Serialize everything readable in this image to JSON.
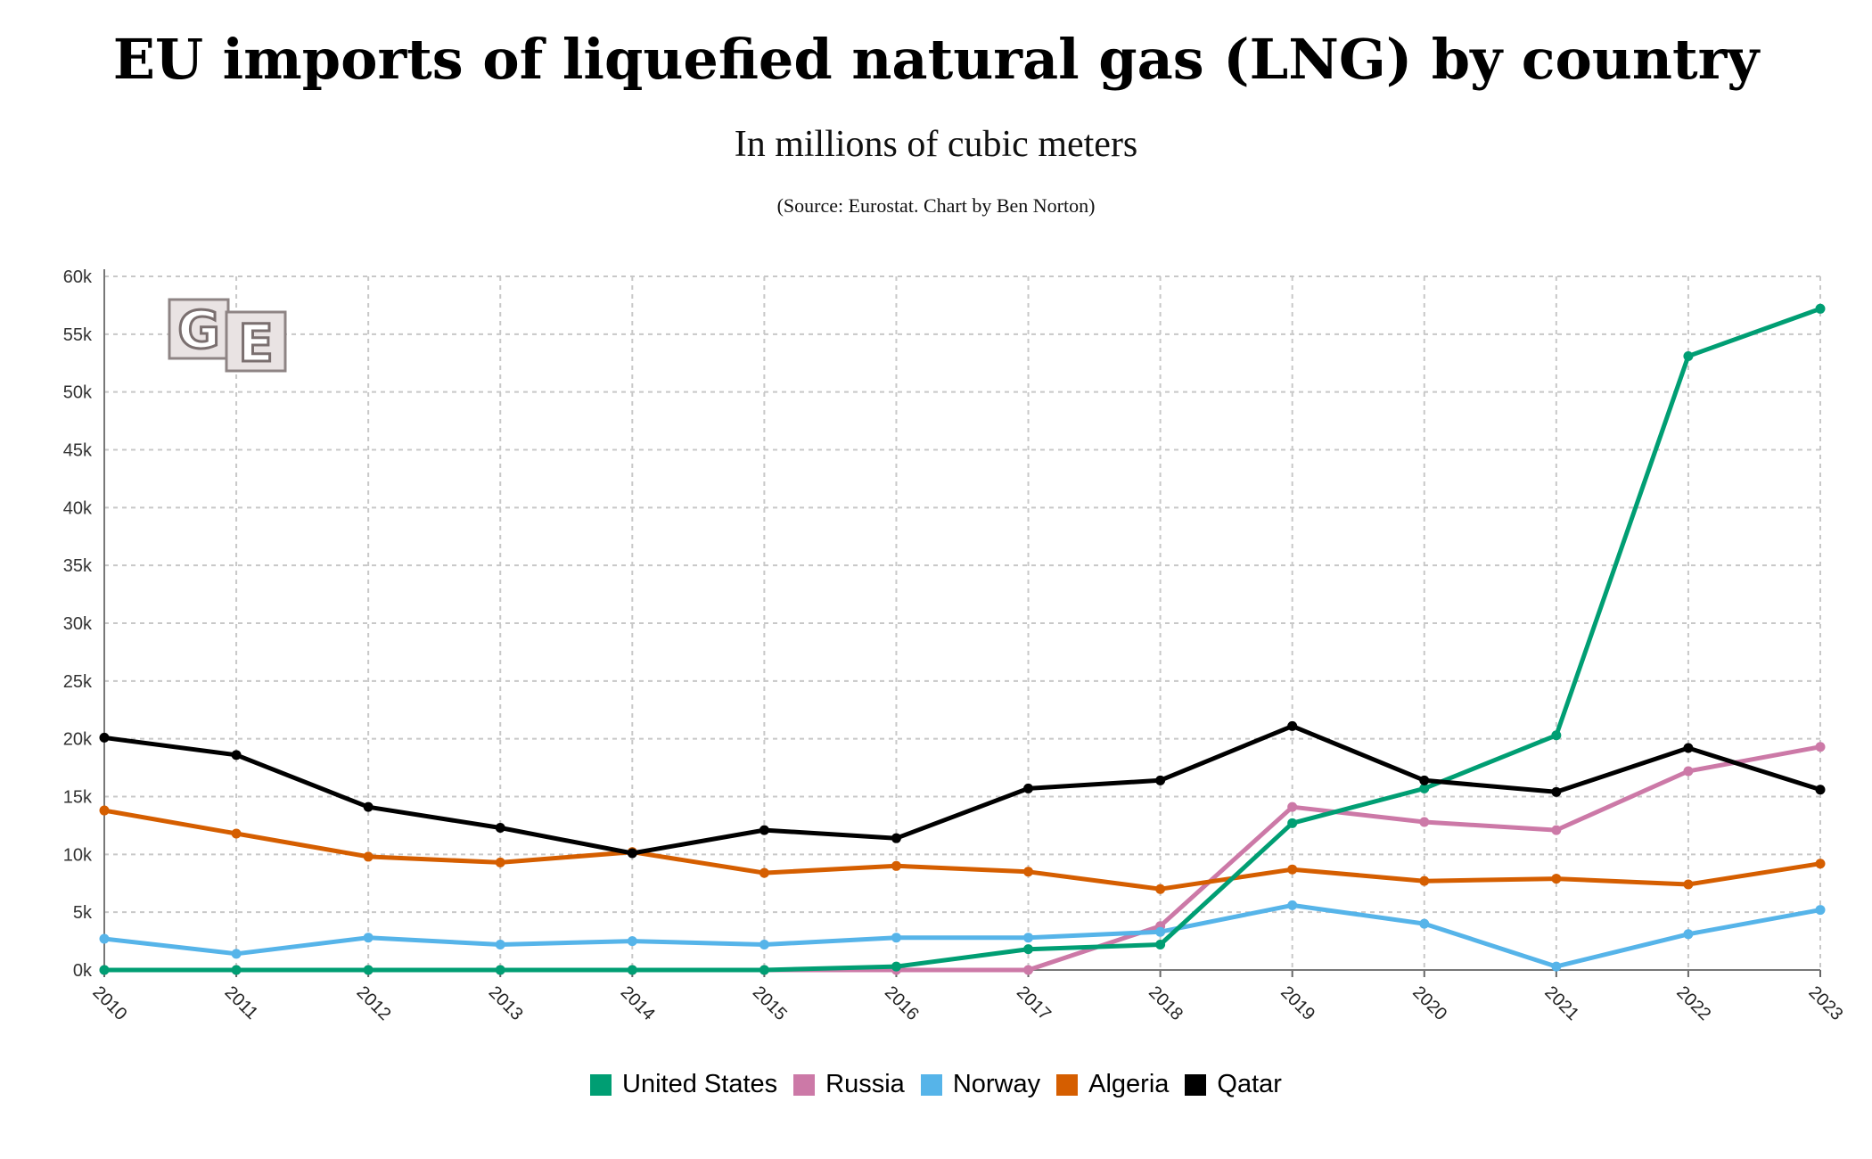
{
  "header": {
    "title": "EU imports of liquefied natural gas (LNG) by country",
    "subtitle": "In millions of cubic meters",
    "source": "(Source: Eurostat. Chart by Ben Norton)"
  },
  "logo": {
    "text_left": "G",
    "text_right": "E"
  },
  "chart_data": {
    "type": "line",
    "title": "EU imports of liquefied natural gas (LNG) by country",
    "subtitle": "In millions of cubic meters",
    "xlabel": "",
    "ylabel": "",
    "grid": true,
    "legend_position": "bottom",
    "ylim": [
      0,
      60000
    ],
    "y_ticks": [
      0,
      5000,
      10000,
      15000,
      20000,
      25000,
      30000,
      35000,
      40000,
      45000,
      50000,
      55000,
      60000
    ],
    "y_tick_labels": [
      "0k",
      "5k",
      "10k",
      "15k",
      "20k",
      "25k",
      "30k",
      "35k",
      "40k",
      "45k",
      "50k",
      "55k",
      "60k"
    ],
    "categories": [
      "2010",
      "2011",
      "2012",
      "2013",
      "2014",
      "2015",
      "2016",
      "2017",
      "2018",
      "2019",
      "2020",
      "2021",
      "2022",
      "2023"
    ],
    "series": [
      {
        "name": "Russia",
        "color": "#cc79a7",
        "values": [
          0,
          0,
          0,
          0,
          0,
          0,
          0,
          0,
          3800,
          14100,
          12800,
          12100,
          17200,
          19300
        ]
      },
      {
        "name": "Norway",
        "color": "#56b4e9",
        "values": [
          2700,
          1400,
          2800,
          2200,
          2500,
          2200,
          2800,
          2800,
          3300,
          5600,
          4000,
          300,
          3100,
          5200
        ]
      },
      {
        "name": "Algeria",
        "color": "#d55e00",
        "values": [
          13800,
          11800,
          9800,
          9300,
          10200,
          8400,
          9000,
          8500,
          7000,
          8700,
          7700,
          7900,
          7400,
          9200
        ]
      },
      {
        "name": "United States",
        "color": "#009e73",
        "values": [
          0,
          0,
          0,
          0,
          0,
          0,
          300,
          1800,
          2200,
          12700,
          15700,
          20300,
          53100,
          57200
        ]
      },
      {
        "name": "Qatar",
        "color": "#000000",
        "values": [
          20100,
          18600,
          14100,
          12300,
          10100,
          12100,
          11400,
          15700,
          16400,
          21100,
          16400,
          15400,
          19200,
          15600
        ]
      }
    ],
    "legend": [
      "United States",
      "Russia",
      "Norway",
      "Algeria",
      "Qatar"
    ]
  }
}
